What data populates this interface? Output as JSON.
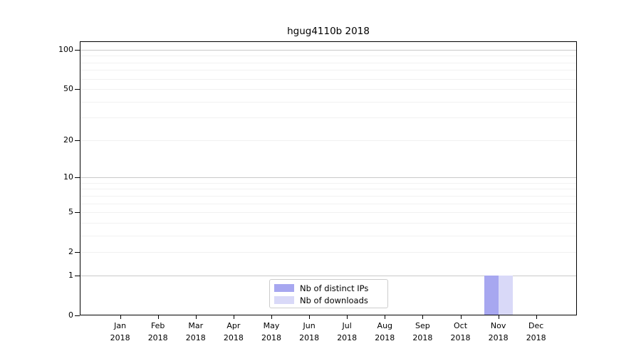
{
  "chart_data": {
    "type": "bar",
    "title": "hgug4110b 2018",
    "categories": [
      "Jan",
      "Feb",
      "Mar",
      "Apr",
      "May",
      "Jun",
      "Jul",
      "Aug",
      "Sep",
      "Oct",
      "Nov",
      "Dec"
    ],
    "year": "2018",
    "series": [
      {
        "name": "Nb of distinct IPs",
        "color": "#a7a7f0",
        "values": [
          0,
          0,
          0,
          0,
          0,
          0,
          0,
          0,
          0,
          0,
          1,
          0
        ]
      },
      {
        "name": "Nb of downloads",
        "color": "#d9d9f8",
        "values": [
          0,
          0,
          0,
          0,
          0,
          0,
          0,
          0,
          0,
          0,
          1,
          0
        ]
      }
    ],
    "xlabel": "",
    "ylabel": "",
    "yscale": "log1p",
    "ylim": [
      0,
      100
    ],
    "ytick_values": [
      0,
      1,
      2,
      5,
      10,
      20,
      50,
      100
    ],
    "ytick_labels": [
      "0",
      "1",
      "2",
      "5",
      "10",
      "20",
      "50",
      "100"
    ],
    "grid": true,
    "grid_major_values": [
      1,
      10,
      100
    ],
    "grid_minor_values": [
      2,
      3,
      4,
      5,
      6,
      7,
      8,
      9,
      20,
      30,
      40,
      50,
      60,
      70,
      80,
      90
    ],
    "legend_position": "bottom-center",
    "colors": {
      "axis": "#000000",
      "grid_major": "#c9c9c9",
      "grid_minor": "#f1f1f1",
      "legend_border": "#cccccc",
      "background": "#ffffff"
    }
  }
}
